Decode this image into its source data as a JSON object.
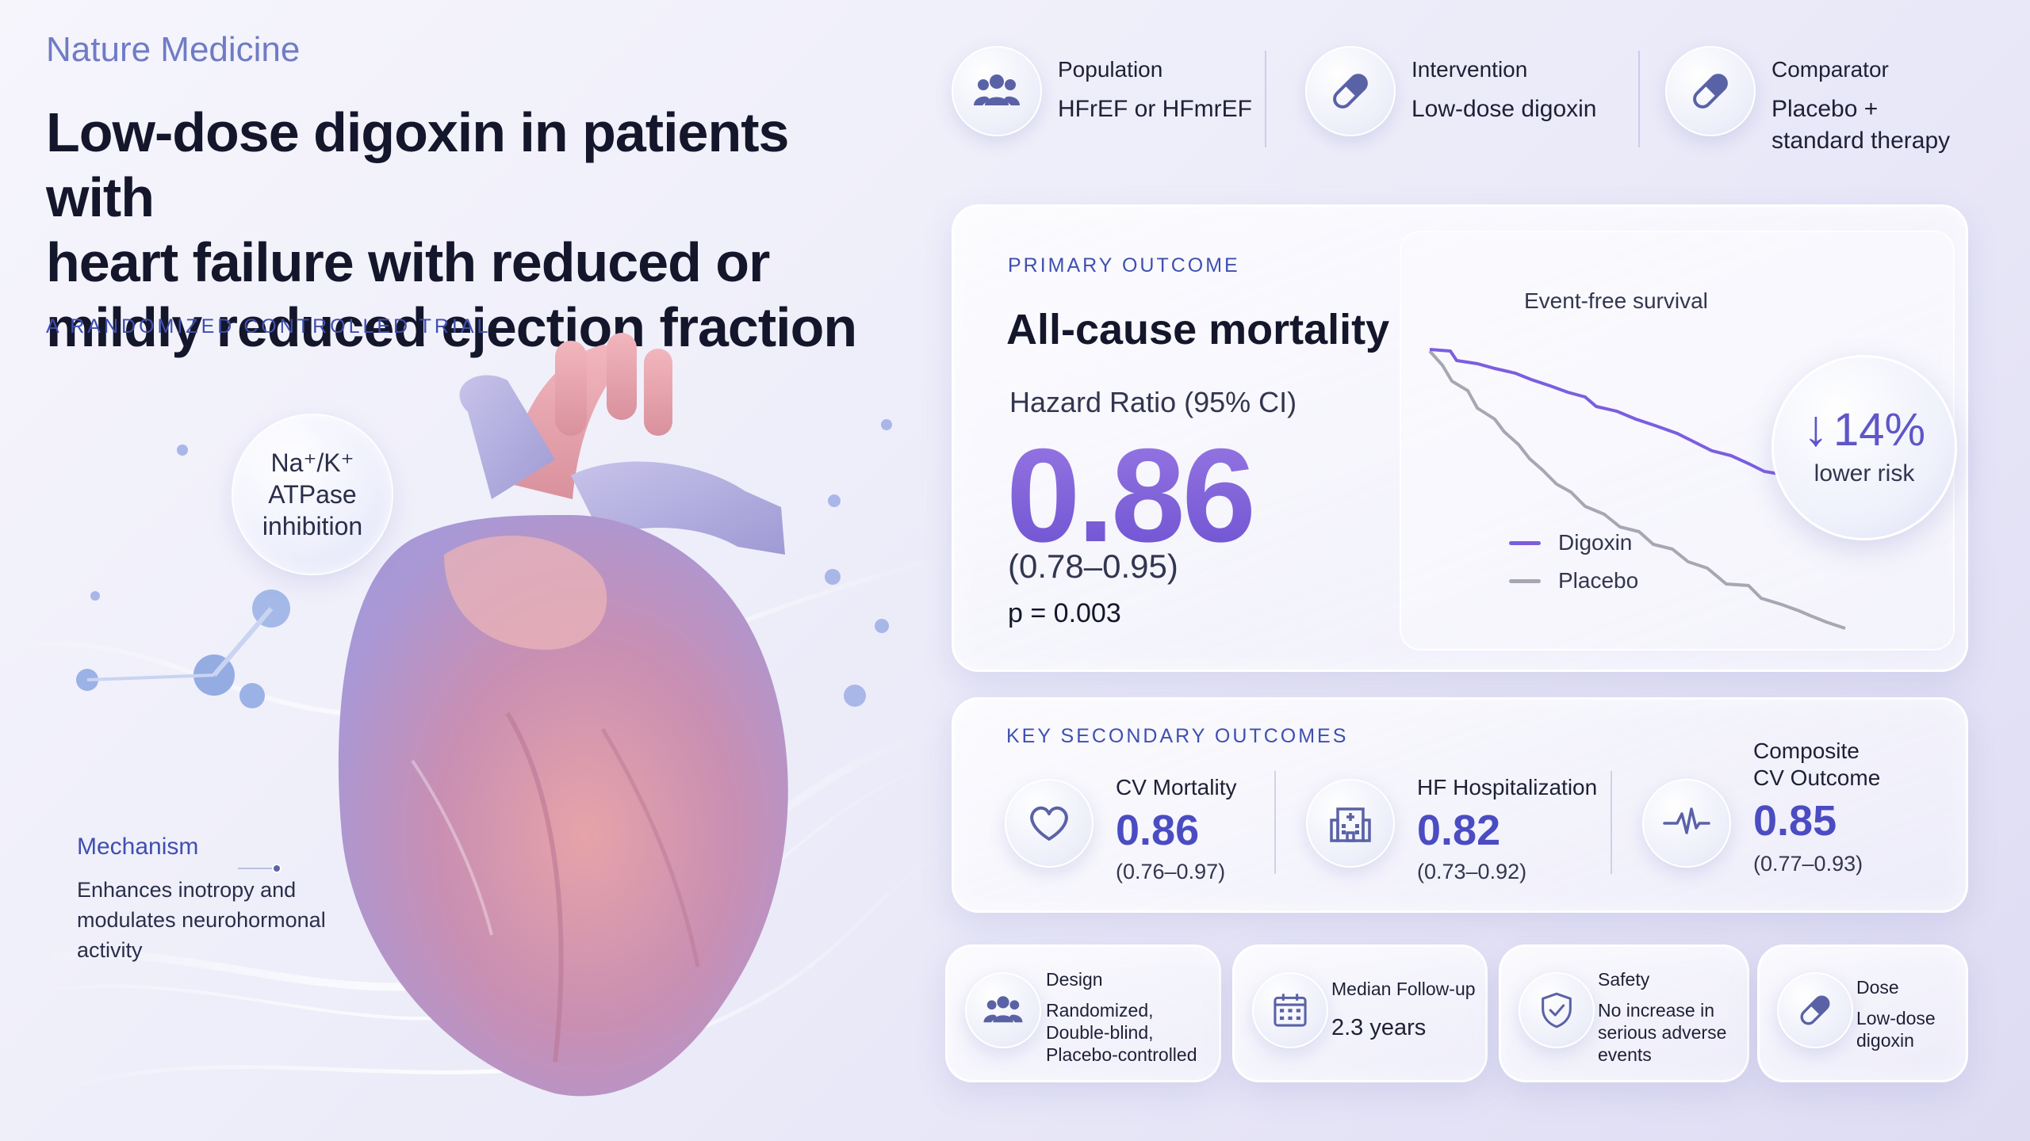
{
  "header": {
    "journal": "Nature Medicine",
    "title_lines": [
      "Low-dose digoxin in patients with",
      "heart failure with reduced or",
      "mildly reduced ejection fraction"
    ],
    "subtitle": "A RANDOMIZED CONTROLLED TRIAL"
  },
  "illustration": {
    "bubble_lines": [
      "Na⁺/K⁺",
      "ATPase",
      "inhibition"
    ],
    "mechanism_title": "Mechanism",
    "mechanism_text": "Enhances inotropy and modulates neurohormonal activity"
  },
  "pico": [
    {
      "label": "Population",
      "value_lines": [
        "HFrEF or HFmrEF"
      ],
      "icon": "people-icon"
    },
    {
      "label": "Intervention",
      "value_lines": [
        "Low-dose digoxin"
      ],
      "icon": "pill-icon"
    },
    {
      "label": "Comparator",
      "value_lines": [
        "Placebo +",
        "standard therapy"
      ],
      "icon": "pill-icon"
    }
  ],
  "primary": {
    "caption": "PRIMARY OUTCOME",
    "outcome": "All-cause mortality",
    "hr_label": "Hazard Ratio (95% CI)",
    "hr": "0.86",
    "ci": "(0.78–0.95)",
    "p": "p = 0.003",
    "plot_title": "Event-free survival",
    "risk_value": "14%",
    "risk_label": "lower risk",
    "legend": [
      {
        "name": "Digoxin",
        "color": "#7b5ee0"
      },
      {
        "name": "Placebo",
        "color": "#a7a7b3"
      }
    ]
  },
  "secondary": {
    "caption": "KEY SECONDARY OUTCOMES",
    "items": [
      {
        "name_lines": [
          "CV Mortality"
        ],
        "hr": "0.86",
        "ci": "(0.76–0.97)",
        "icon": "heart-icon"
      },
      {
        "name_lines": [
          "HF Hospitalization"
        ],
        "hr": "0.82",
        "ci": "(0.73–0.92)",
        "icon": "hospital-icon"
      },
      {
        "name_lines": [
          "Composite",
          "CV Outcome"
        ],
        "hr": "0.85",
        "ci": "(0.77–0.93)",
        "icon": "pulse-icon"
      }
    ]
  },
  "details": [
    {
      "label": "Design",
      "value_lines": [
        "Randomized,",
        "Double-blind,",
        "Placebo-controlled"
      ],
      "icon": "people-icon"
    },
    {
      "label": "Median Follow-up",
      "value_lines": [
        "2.3 years"
      ],
      "icon": "calendar-icon"
    },
    {
      "label": "Safety",
      "value_lines": [
        "No increase in",
        "serious adverse",
        "events"
      ],
      "icon": "shield-icon"
    },
    {
      "label": "Dose",
      "value_lines": [
        "Low-dose",
        "digoxin"
      ],
      "icon": "pill-icon"
    }
  ],
  "colors": {
    "accent": "#3f4fb0",
    "digoxin": "#7b5ee0",
    "placebo": "#a7a7b3"
  }
}
